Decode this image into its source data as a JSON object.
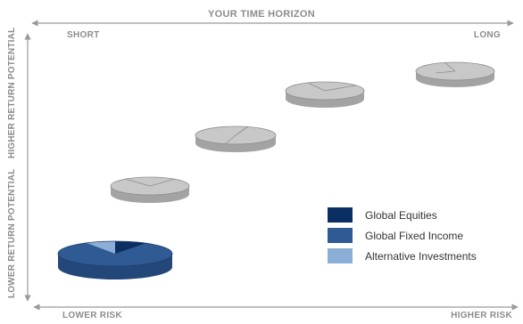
{
  "axes": {
    "top_label": "YOUR TIME HORIZON",
    "top_left": "SHORT",
    "top_right": "LONG",
    "bottom_left": "LOWER RISK",
    "bottom_right": "HIGHER RISK",
    "left_upper": "HIGHER RETURN POTENTIAL",
    "left_lower": "LOWER RETURN POTENTIAL"
  },
  "legend": [
    {
      "label": "Global Equities",
      "color": "#0c2f63"
    },
    {
      "label": "Global Fixed Income",
      "color": "#2f5a94"
    },
    {
      "label": "Alternative Investments",
      "color": "#8aaed6"
    }
  ],
  "colors": {
    "axis_line": "#9a9a9a",
    "pie_gray_top": "#c8c8c8",
    "pie_gray_side": "#a3a3a3",
    "pie_gray_edge": "#8e8e8e"
  }
}
